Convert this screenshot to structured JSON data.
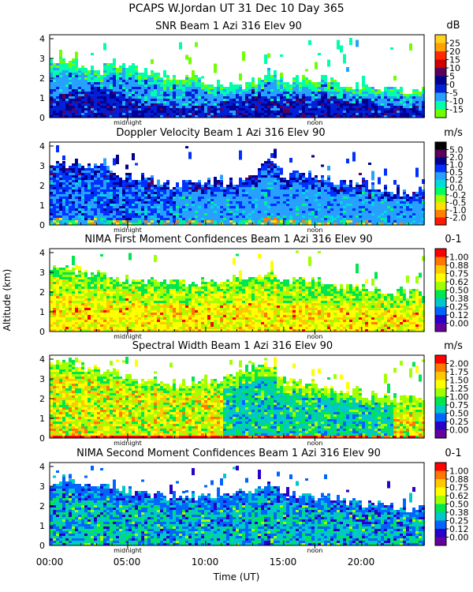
{
  "figure": {
    "title": "PCAPS W.Jordan UT  31 Dec 10 Day 365",
    "ylabel": "Altitude (km)",
    "xlabel": "Time (UT)",
    "xticks": [
      "00:00",
      "05:00",
      "10:00",
      "15:00",
      "20:00"
    ],
    "markers": [
      "midnight",
      "noon"
    ]
  },
  "chart_data": [
    {
      "type": "heatmap",
      "title": "SNR Beam 1 Azi 316 Elev 90",
      "unit": "dB",
      "xlim": [
        0,
        24
      ],
      "ylim": [
        0,
        4.2
      ],
      "yticks": [
        "0",
        "1",
        "2",
        "3",
        "4"
      ],
      "colorbar_labels": [
        "25",
        "20",
        "15",
        "10",
        "5",
        "0",
        "-5",
        "-10",
        "-15"
      ],
      "colorbar_colors": [
        "#ffd21e",
        "#ffa000",
        "#ff2a00",
        "#d00000",
        "#5a005a",
        "#000090",
        "#0020d8",
        "#28a0ff",
        "#00ffaa",
        "#70ff00"
      ],
      "top_km": [
        2.9,
        2.9,
        2.7,
        2.3,
        2.7,
        2.6,
        2.3,
        2.1,
        2.0,
        2.1,
        1.8,
        1.6,
        1.6,
        1.8,
        2.4,
        1.8,
        2.0,
        2.0,
        1.9,
        1.7,
        1.5,
        1.5,
        1.4,
        1.3
      ],
      "core": [
        1.1,
        1.3,
        1.5,
        1.6,
        1.3,
        1.1,
        0.8,
        0.7,
        0.6,
        0.6,
        0.7,
        0.9,
        1.1,
        1.3,
        1.0,
        1.1,
        1.2,
        1.2,
        1.1,
        1.0,
        0.9,
        0.8,
        0.7,
        0.6
      ]
    },
    {
      "type": "heatmap",
      "title": "Doppler Velocity Beam 1 Azi 316 Elev 90",
      "unit": "m/s",
      "xlim": [
        0,
        24
      ],
      "ylim": [
        0,
        4.2
      ],
      "yticks": [
        "0",
        "1",
        "2",
        "3",
        "4"
      ],
      "colorbar_labels": [
        "5.0",
        "2.0",
        "1.0",
        "0.5",
        "0.2",
        "0.0",
        "-0.2",
        "-0.5",
        "-1.0",
        "-2.0"
      ],
      "colorbar_colors": [
        "#000000",
        "#5a005a",
        "#000090",
        "#0030ff",
        "#28a0ff",
        "#00dcdc",
        "#00ff60",
        "#a0ff00",
        "#ffe000",
        "#ff8000",
        "#ff1800"
      ],
      "top_km": [
        3.0,
        3.0,
        3.1,
        3.0,
        2.6,
        2.4,
        2.4,
        2.1,
        2.0,
        2.2,
        2.2,
        2.0,
        2.2,
        2.6,
        3.3,
        2.3,
        2.7,
        2.3,
        2.2,
        2.0,
        2.1,
        1.8,
        1.7,
        1.6
      ]
    },
    {
      "type": "heatmap",
      "title": "NIMA First Moment Confidences Beam 1 Azi 316 Elev 90",
      "unit": "0-1",
      "xlim": [
        0,
        24
      ],
      "ylim": [
        0,
        4.2
      ],
      "yticks": [
        "0",
        "1",
        "2",
        "3",
        "4"
      ],
      "colorbar_labels": [
        "1.00",
        "0.88",
        "0.75",
        "0.62",
        "0.50",
        "0.38",
        "0.25",
        "0.12",
        "0.00"
      ],
      "colorbar_colors": [
        "#ff0000",
        "#ff7800",
        "#ffc800",
        "#ffff00",
        "#a0ff00",
        "#00e650",
        "#00c8c8",
        "#0064ff",
        "#2800c8",
        "#64009c"
      ],
      "top_km": [
        3.2,
        3.2,
        3.0,
        3.0,
        2.7,
        2.6,
        2.5,
        2.5,
        2.5,
        2.4,
        2.5,
        2.5,
        2.6,
        2.8,
        3.0,
        2.4,
        2.7,
        2.5,
        2.4,
        2.2,
        2.1,
        2.1,
        2.0,
        1.9
      ]
    },
    {
      "type": "heatmap",
      "title": "Spectral Width Beam 1 Azi 316 Elev 90",
      "unit": "m/s",
      "xlim": [
        0,
        24
      ],
      "ylim": [
        0,
        4.2
      ],
      "yticks": [
        "0",
        "1",
        "2",
        "3",
        "4"
      ],
      "colorbar_labels": [
        "2.00",
        "1.75",
        "1.50",
        "1.25",
        "1.00",
        "0.75",
        "0.50",
        "0.25",
        "0.00"
      ],
      "colorbar_colors": [
        "#ff0000",
        "#ff7800",
        "#ffc800",
        "#ffff00",
        "#a0ff00",
        "#00e650",
        "#00c8c8",
        "#0064ff",
        "#2800c8",
        "#64009c"
      ],
      "top_km": [
        3.8,
        3.9,
        3.6,
        3.5,
        3.3,
        3.1,
        2.9,
        2.8,
        2.7,
        2.8,
        2.9,
        3.0,
        3.3,
        3.6,
        3.7,
        2.8,
        2.8,
        2.7,
        2.5,
        2.3,
        2.2,
        2.1,
        2.0,
        1.9
      ]
    },
    {
      "type": "heatmap",
      "title": "NIMA Second Moment Confidences Beam 1 Azi 316 Elev 90",
      "unit": "0-1",
      "xlim": [
        0,
        24
      ],
      "ylim": [
        0,
        4.2
      ],
      "yticks": [
        "0",
        "1",
        "2",
        "3",
        "4"
      ],
      "colorbar_labels": [
        "1.00",
        "0.88",
        "0.75",
        "0.62",
        "0.50",
        "0.38",
        "0.25",
        "0.12",
        "0.00"
      ],
      "colorbar_colors": [
        "#ff0000",
        "#ff7800",
        "#ffc800",
        "#ffff00",
        "#a0ff00",
        "#00e650",
        "#00c8c8",
        "#0064ff",
        "#2800c8",
        "#64009c"
      ],
      "top_km": [
        3.2,
        3.3,
        3.1,
        3.0,
        2.8,
        2.7,
        2.5,
        2.4,
        2.4,
        2.5,
        2.5,
        2.5,
        2.6,
        2.8,
        3.1,
        2.4,
        2.7,
        2.4,
        2.3,
        2.1,
        2.0,
        2.0,
        1.9,
        1.8
      ]
    }
  ]
}
